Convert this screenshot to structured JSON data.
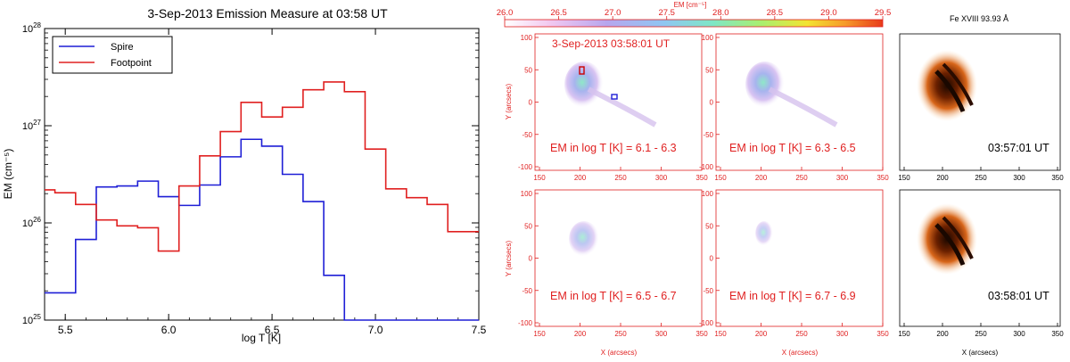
{
  "chart_data": [
    {
      "type": "line",
      "step": true,
      "title": "3-Sep-2013 Emission Measure at 03:58 UT",
      "xlabel": "log T [K]",
      "ylabel": "EM (cm⁻⁵)",
      "xlim": [
        5.4,
        7.5
      ],
      "ylim_log10": [
        25,
        28
      ],
      "x_ticks": [
        5.5,
        6.0,
        6.5,
        7.0,
        7.5
      ],
      "x_tick_labels": [
        "5.5",
        "6.0",
        "6.5",
        "7.0",
        "7.5"
      ],
      "y_ticks_log10": [
        25,
        26,
        27,
        28
      ],
      "y_tick_base": "10",
      "y_tick_exponents": [
        "25",
        "26",
        "27",
        "28"
      ],
      "legend_position": "top-left",
      "bin_edges": [
        5.4,
        5.45,
        5.55,
        5.65,
        5.75,
        5.85,
        5.95,
        6.05,
        6.15,
        6.25,
        6.35,
        6.45,
        6.55,
        6.65,
        6.75,
        6.85,
        6.95,
        7.05,
        7.15,
        7.25,
        7.35,
        7.45,
        7.5
      ],
      "series": [
        {
          "name": "Spire",
          "color": "#1f1fd6",
          "log10_values": [
            25.28,
            25.28,
            25.83,
            26.37,
            26.38,
            26.43,
            26.27,
            26.18,
            26.39,
            26.68,
            26.86,
            26.79,
            26.5,
            26.22,
            25.46,
            25.0,
            25.0,
            25.0,
            25.0,
            25.0,
            25.0,
            25.0
          ]
        },
        {
          "name": "Footpoint",
          "color": "#e02020",
          "log10_values": [
            26.34,
            26.31,
            26.19,
            26.03,
            25.97,
            25.95,
            25.71,
            26.38,
            26.69,
            26.94,
            27.24,
            27.09,
            27.19,
            27.37,
            27.45,
            27.35,
            26.76,
            26.35,
            26.26,
            26.19,
            25.91,
            25.91
          ]
        }
      ]
    },
    {
      "type": "heatmap",
      "colorbar_title": "EM [cm⁻⁵]",
      "colorbar_ticks": [
        "26.0",
        "26.5",
        "27.0",
        "27.5",
        "28.0",
        "28.5",
        "29.0",
        "29.5"
      ],
      "colorbar_range": [
        26.0,
        29.5
      ],
      "time_label": "3-Sep-2013 03:58:01 UT",
      "xlabel": "X (arcsecs)",
      "ylabel": "Y (arcsecs)",
      "x_ticks": [
        "150",
        "200",
        "250",
        "300",
        "350"
      ],
      "y_ticks": [
        "100",
        "50",
        "0",
        "-50",
        "-100"
      ],
      "panels": [
        {
          "label": "EM in log T [K] = 6.1 - 6.3",
          "intensity": 0.9
        },
        {
          "label": "EM in log T [K] = 6.3 - 6.5",
          "intensity": 1.0
        },
        {
          "label": "EM in log T [K] = 6.5 - 6.7",
          "intensity": 0.45
        },
        {
          "label": "EM in log T [K] = 6.7 - 6.9",
          "intensity": 0.25
        }
      ]
    },
    {
      "type": "heatmap",
      "title": "Fe XVIII 93.93 Å",
      "xlabel": "X (arcsecs)",
      "x_ticks": [
        "150",
        "200",
        "250",
        "300",
        "350"
      ],
      "panels": [
        {
          "label": "03:57:01 UT"
        },
        {
          "label": "03:58:01 UT"
        }
      ]
    }
  ]
}
